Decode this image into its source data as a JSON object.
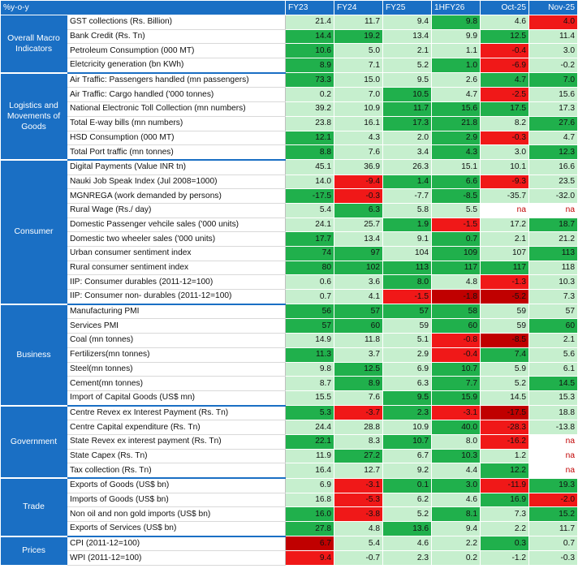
{
  "header": {
    "corner": "%y-o-y",
    "columns": [
      "FY23",
      "FY24",
      "FY25",
      "1HFY26",
      "Oct-25",
      "Nov-25"
    ]
  },
  "colors": {
    "header_blue": "#1a6fc4",
    "light_green": "#c6efce",
    "dark_green": "#20b04c",
    "red": "#f01818",
    "dark_red": "#c00000"
  },
  "groups": [
    {
      "name": "Overall Macro Indicators",
      "rows": [
        {
          "label": "GST collections (Rs. Billion)",
          "values": [
            "21.4",
            "11.7",
            "9.4",
            "9.8",
            "4.6",
            "4.0"
          ],
          "tones": [
            "lg",
            "lg",
            "lg",
            "dg",
            "lg",
            "rd"
          ]
        },
        {
          "label": "Bank Credit (Rs. Tn)",
          "values": [
            "14.4",
            "19.2",
            "13.4",
            "9.9",
            "12.5",
            "11.4"
          ],
          "tones": [
            "dg",
            "dg",
            "lg",
            "lg",
            "dg",
            "lg"
          ]
        },
        {
          "label": "Petroleum Consumption (000 MT)",
          "values": [
            "10.6",
            "5.0",
            "2.1",
            "1.1",
            "-0.4",
            "3.0"
          ],
          "tones": [
            "dg",
            "lg",
            "lg",
            "lg",
            "rd",
            "lg"
          ]
        },
        {
          "label": "Eletcricity generation (bn KWh)",
          "values": [
            "8.9",
            "7.1",
            "5.2",
            "1.0",
            "-6.9",
            "-0.2"
          ],
          "tones": [
            "dg",
            "lg",
            "lg",
            "dg",
            "rd",
            "lg"
          ]
        }
      ]
    },
    {
      "name": "Logistics and Movements of Goods",
      "rows": [
        {
          "label": "Air Traffic: Passengers handled  (mn passengers)",
          "values": [
            "73.3",
            "15.0",
            "9.5",
            "2.6",
            "4.7",
            "7.0"
          ],
          "tones": [
            "dg",
            "lg",
            "lg",
            "lg",
            "dg",
            "dg"
          ]
        },
        {
          "label": "Air Traffic: Cargo handled ('000 tonnes)",
          "values": [
            "0.2",
            "7.0",
            "10.5",
            "4.7",
            "-2.5",
            "15.6"
          ],
          "tones": [
            "lg",
            "lg",
            "dg",
            "lg",
            "rd",
            "lg"
          ]
        },
        {
          "label": "National Electronic Toll Collection (mn numbers)",
          "values": [
            "39.2",
            "10.9",
            "11.7",
            "15.6",
            "17.5",
            "17.3"
          ],
          "tones": [
            "lg",
            "lg",
            "dg",
            "dg",
            "dg",
            "lg"
          ]
        },
        {
          "label": "Total E-way bills (mn numbers)",
          "values": [
            "23.8",
            "16.1",
            "17.3",
            "21.8",
            "8.2",
            "27.6"
          ],
          "tones": [
            "lg",
            "lg",
            "dg",
            "dg",
            "lg",
            "dg"
          ]
        },
        {
          "label": "HSD Consumption (000 MT)",
          "values": [
            "12.1",
            "4.3",
            "2.0",
            "2.9",
            "-0.3",
            "4.7"
          ],
          "tones": [
            "dg",
            "lg",
            "lg",
            "dg",
            "rd",
            "lg"
          ]
        },
        {
          "label": "Total Port traffic (mn tonnes)",
          "values": [
            "8.8",
            "7.6",
            "3.4",
            "4.3",
            "3.0",
            "12.3"
          ],
          "tones": [
            "dg",
            "lg",
            "lg",
            "dg",
            "lg",
            "dg"
          ]
        }
      ]
    },
    {
      "name": "Consumer",
      "rows": [
        {
          "label": "Digital Payments (Value INR tn)",
          "values": [
            "45.1",
            "36.9",
            "26.3",
            "15.1",
            "10.1",
            "16.6"
          ],
          "tones": [
            "lg",
            "lg",
            "lg",
            "lg",
            "lg",
            "lg"
          ]
        },
        {
          "label": "Nauki Job Speak Index (Jul 2008=1000)",
          "values": [
            "14.0",
            "-9.4",
            "1.4",
            "6.6",
            "-9.3",
            "23.5"
          ],
          "tones": [
            "lg",
            "rd",
            "dg",
            "dg",
            "rd",
            "lg"
          ]
        },
        {
          "label": "MGNREGA (work demanded by persons)",
          "values": [
            "-17.5",
            "-0.3",
            "-7.7",
            "-8.5",
            "-35.7",
            "-32.0"
          ],
          "tones": [
            "dg",
            "rd",
            "lg",
            "dg",
            "lg",
            "lg"
          ]
        },
        {
          "label": "Rural Wage (Rs./ day)",
          "values": [
            "5.4",
            "6.3",
            "5.8",
            "5.5",
            "na",
            "na"
          ],
          "tones": [
            "lg",
            "dg",
            "lg",
            "lg",
            "wh",
            "wh"
          ]
        },
        {
          "label": "Domestic Passenger vehcile sales ('000 units)",
          "values": [
            "24.1",
            "25.7",
            "1.9",
            "-1.5",
            "17.2",
            "18.7"
          ],
          "tones": [
            "lg",
            "lg",
            "dg",
            "rd",
            "lg",
            "dg"
          ]
        },
        {
          "label": "Domestic two wheeler sales ('000 units)",
          "values": [
            "17.7",
            "13.4",
            "9.1",
            "0.7",
            "2.1",
            "21.2"
          ],
          "tones": [
            "dg",
            "lg",
            "lg",
            "dg",
            "lg",
            "lg"
          ]
        },
        {
          "label": "Urban consumer sentiment index",
          "values": [
            "74",
            "97",
            "104",
            "109",
            "107",
            "113"
          ],
          "tones": [
            "dg",
            "dg",
            "lg",
            "dg",
            "lg",
            "dg"
          ]
        },
        {
          "label": "Rural consumer sentiment index",
          "values": [
            "80",
            "102",
            "113",
            "117",
            "117",
            "118"
          ],
          "tones": [
            "dg",
            "dg",
            "dg",
            "dg",
            "dg",
            "lg"
          ]
        },
        {
          "label": "IIP: Consumer durables (2011-12=100)",
          "values": [
            "0.6",
            "3.6",
            "8.0",
            "4.8",
            "-1.3",
            "10.3"
          ],
          "tones": [
            "lg",
            "lg",
            "dg",
            "lg",
            "rd",
            "lg"
          ]
        },
        {
          "label": "IIP: Consumer non- durables (2011-12=100)",
          "values": [
            "0.7",
            "4.1",
            "-1.5",
            "-1.8",
            "-5.2",
            "7.3"
          ],
          "tones": [
            "lg",
            "lg",
            "rd",
            "dr",
            "dr",
            "lg"
          ]
        }
      ]
    },
    {
      "name": "Business",
      "rows": [
        {
          "label": "Manufacturing PMI",
          "values": [
            "56",
            "57",
            "57",
            "58",
            "59",
            "57"
          ],
          "tones": [
            "dg",
            "dg",
            "dg",
            "dg",
            "lg",
            "lg"
          ]
        },
        {
          "label": "Services PMI",
          "values": [
            "57",
            "60",
            "59",
            "60",
            "59",
            "60"
          ],
          "tones": [
            "dg",
            "dg",
            "lg",
            "dg",
            "lg",
            "dg"
          ]
        },
        {
          "label": "Coal (mn tonnes)",
          "values": [
            "14.9",
            "11.8",
            "5.1",
            "-0.8",
            "-8.5",
            "2.1"
          ],
          "tones": [
            "lg",
            "lg",
            "lg",
            "rd",
            "dr",
            "lg"
          ]
        },
        {
          "label": "Fertilizers(mn tonnes)",
          "values": [
            "11.3",
            "3.7",
            "2.9",
            "-0.4",
            "7.4",
            "5.6"
          ],
          "tones": [
            "dg",
            "lg",
            "lg",
            "rd",
            "dg",
            "lg"
          ]
        },
        {
          "label": "Steel(mn tonnes)",
          "values": [
            "9.8",
            "12.5",
            "6.9",
            "10.7",
            "5.9",
            "6.1"
          ],
          "tones": [
            "lg",
            "dg",
            "lg",
            "dg",
            "lg",
            "lg"
          ]
        },
        {
          "label": "Cement(mn tonnes)",
          "values": [
            "8.7",
            "8.9",
            "6.3",
            "7.7",
            "5.2",
            "14.5"
          ],
          "tones": [
            "lg",
            "dg",
            "lg",
            "dg",
            "lg",
            "dg"
          ]
        },
        {
          "label": "Import of Capital Goods (US$ mn)",
          "values": [
            "15.5",
            "7.6",
            "9.5",
            "15.9",
            "14.5",
            "15.3"
          ],
          "tones": [
            "lg",
            "lg",
            "dg",
            "dg",
            "lg",
            "lg"
          ]
        }
      ]
    },
    {
      "name": "Government",
      "rows": [
        {
          "label": "Centre Revex ex Interest Payment (Rs. Tn)",
          "values": [
            "5.3",
            "-3.7",
            "2.3",
            "-3.1",
            "-17.5",
            "18.8"
          ],
          "tones": [
            "dg",
            "rd",
            "dg",
            "rd",
            "dr",
            "lg"
          ]
        },
        {
          "label": "Centre Capital expenditure (Rs. Tn)",
          "values": [
            "24.4",
            "28.8",
            "10.9",
            "40.0",
            "-28.3",
            "-13.8"
          ],
          "tones": [
            "lg",
            "lg",
            "lg",
            "dg",
            "rd",
            "lg"
          ]
        },
        {
          "label": "State Revex ex interest payment (Rs. Tn)",
          "values": [
            "22.1",
            "8.3",
            "10.7",
            "8.0",
            "-16.2",
            "na"
          ],
          "tones": [
            "dg",
            "lg",
            "dg",
            "lg",
            "rd",
            "wh"
          ]
        },
        {
          "label": "State Capex (Rs. Tn)",
          "values": [
            "11.9",
            "27.2",
            "6.7",
            "10.3",
            "1.2",
            "na"
          ],
          "tones": [
            "lg",
            "dg",
            "lg",
            "dg",
            "lg",
            "wh"
          ]
        },
        {
          "label": "Tax collection (Rs. Tn)",
          "values": [
            "16.4",
            "12.7",
            "9.2",
            "4.4",
            "12.2",
            "na"
          ],
          "tones": [
            "lg",
            "lg",
            "lg",
            "lg",
            "dg",
            "wh"
          ]
        }
      ]
    },
    {
      "name": "Trade",
      "rows": [
        {
          "label": "Exports of Goods (US$ bn)",
          "values": [
            "6.9",
            "-3.1",
            "0.1",
            "3.0",
            "-11.9",
            "19.3"
          ],
          "tones": [
            "lg",
            "rd",
            "dg",
            "dg",
            "rd",
            "dg"
          ]
        },
        {
          "label": "Imports of Goods (US$ bn)",
          "values": [
            "16.8",
            "-5.3",
            "6.2",
            "4.6",
            "16.9",
            "-2.0"
          ],
          "tones": [
            "lg",
            "rd",
            "lg",
            "lg",
            "dg",
            "rd"
          ]
        },
        {
          "label": "Non oil and non gold imports (US$ bn)",
          "values": [
            "16.0",
            "-3.8",
            "5.2",
            "8.1",
            "7.3",
            "15.2"
          ],
          "tones": [
            "dg",
            "rd",
            "lg",
            "dg",
            "lg",
            "dg"
          ]
        },
        {
          "label": "Exports of Services (US$ bn)",
          "values": [
            "27.8",
            "4.8",
            "13.6",
            "9.4",
            "2.2",
            "11.7"
          ],
          "tones": [
            "dg",
            "lg",
            "dg",
            "lg",
            "lg",
            "lg"
          ]
        }
      ]
    },
    {
      "name": "Prices",
      "rows": [
        {
          "label": "CPI (2011-12=100)",
          "values": [
            "6.7",
            "5.4",
            "4.6",
            "2.2",
            "0.3",
            "0.7"
          ],
          "tones": [
            "dr",
            "lg",
            "lg",
            "lg",
            "dg",
            "lg"
          ]
        },
        {
          "label": "WPI (2011-12=100)",
          "values": [
            "9.4",
            "-0.7",
            "2.3",
            "0.2",
            "-1.2",
            "-0.3"
          ],
          "tones": [
            "rd",
            "lg",
            "lg",
            "lg",
            "lg",
            "lg"
          ]
        }
      ]
    }
  ]
}
